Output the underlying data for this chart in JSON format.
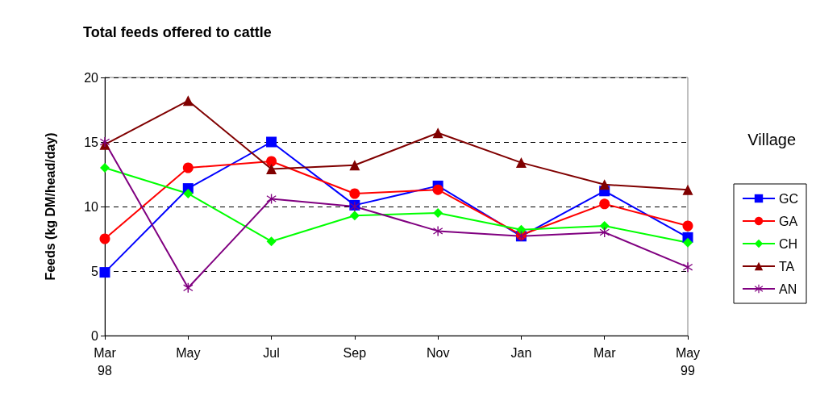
{
  "chart_data": {
    "type": "line",
    "title": "Total feeds offered to cattle",
    "ylabel": "Feeds (kg DM/head/day)",
    "legend_title": "Village",
    "categories": [
      "Mar\n98",
      "May",
      "Jul",
      "Sep",
      "Nov",
      "Jan",
      "Mar",
      "May\n99"
    ],
    "series": [
      {
        "name": "GC",
        "color": "#0000ff",
        "marker": "square",
        "values": [
          4.9,
          11.4,
          15.0,
          10.1,
          11.6,
          7.7,
          11.2,
          7.6
        ]
      },
      {
        "name": "GA",
        "color": "#ff0000",
        "marker": "circle",
        "values": [
          7.5,
          13.0,
          13.5,
          11.0,
          11.3,
          7.8,
          10.2,
          8.5
        ]
      },
      {
        "name": "CH",
        "color": "#00ff00",
        "marker": "diamond",
        "values": [
          13.0,
          11.0,
          7.3,
          9.3,
          9.5,
          8.2,
          8.5,
          7.2
        ]
      },
      {
        "name": "TA",
        "color": "#800000",
        "marker": "triangle",
        "values": [
          14.8,
          18.2,
          12.9,
          13.2,
          15.7,
          13.4,
          11.7,
          11.3
        ]
      },
      {
        "name": "AN",
        "color": "#800080",
        "marker": "cross",
        "values": [
          15.0,
          3.7,
          10.6,
          10.0,
          8.1,
          7.7,
          8.0,
          5.3
        ]
      }
    ],
    "ylim": [
      0,
      20
    ],
    "yticks": [
      0,
      5,
      10,
      15,
      20
    ],
    "grid": "y",
    "legend": "right",
    "line_style": "solid"
  }
}
